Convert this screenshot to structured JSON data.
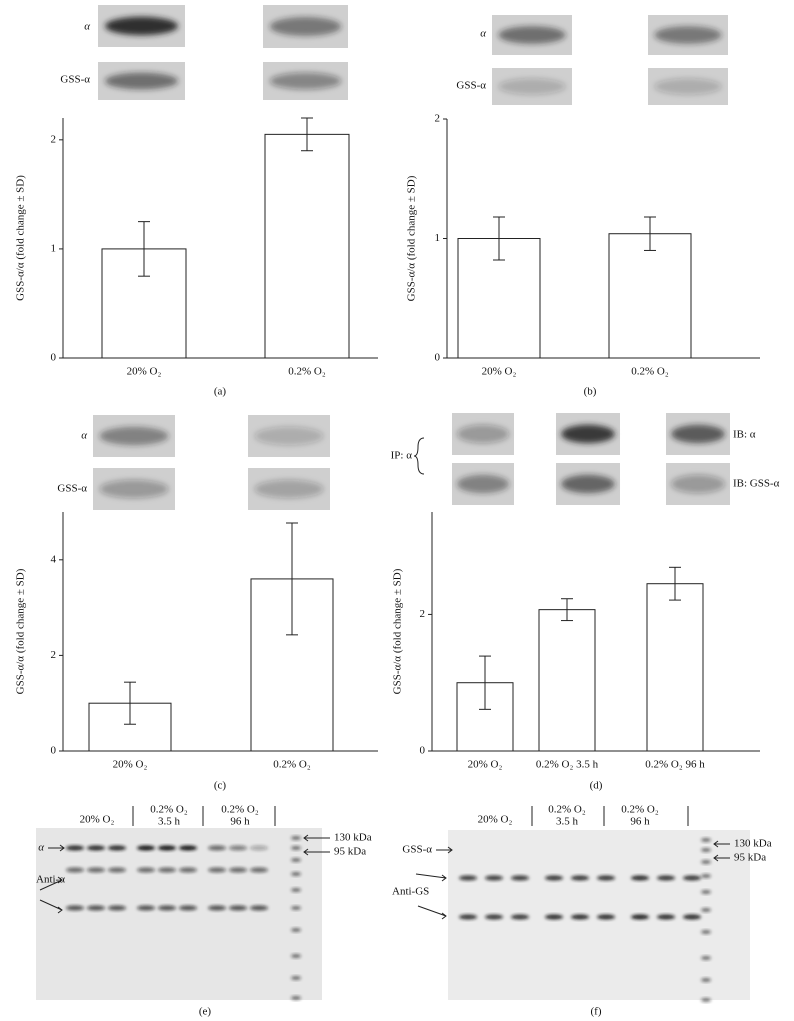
{
  "chart_data": [
    {
      "type": "bar",
      "panel_label": "(a)",
      "y_label": "GSS-α/α (fold change ± SD)",
      "blot_labels": [
        "α",
        "GSS-α"
      ],
      "categories": [
        "20% O₂",
        "0.2% O₂"
      ],
      "values": [
        1.0,
        2.05
      ],
      "errors": [
        0.25,
        0.15
      ],
      "color": "#ffffff",
      "ylim": [
        0,
        2.2
      ],
      "yticks": [
        0,
        1,
        2
      ]
    },
    {
      "type": "bar",
      "panel_label": "(b)",
      "y_label": "GSS-α/α (fold change ± SD)",
      "blot_labels": [
        "α",
        "GSS-α"
      ],
      "categories": [
        "20% O₂",
        "0.2% O₂"
      ],
      "values": [
        1.0,
        1.04
      ],
      "errors": [
        0.18,
        0.14
      ],
      "color": "#ffffff",
      "ylim": [
        0,
        2
      ],
      "yticks": [
        0,
        1,
        2
      ]
    },
    {
      "type": "bar",
      "panel_label": "(c)",
      "y_label": "GSS-α/α (fold change ± SD)",
      "blot_labels": [
        "α",
        "GSS-α"
      ],
      "categories": [
        "20% O₂",
        "0.2% O₂"
      ],
      "values": [
        1.0,
        3.6
      ],
      "errors": [
        0.44,
        1.17
      ],
      "color": "#ffffff",
      "ylim": [
        0,
        5
      ],
      "yticks": [
        0,
        2,
        4
      ]
    },
    {
      "type": "bar",
      "panel_label": "(d)",
      "y_label": "GSS-α/α (fold change ± SD)",
      "ip_label": "IP: α",
      "blot_labels": [
        "IB: α",
        "IB: GSS-α"
      ],
      "categories": [
        "20% O₂",
        "0.2% O₂ 3.5 h",
        "0.2% O₂ 96 h"
      ],
      "values": [
        1.0,
        2.07,
        2.45
      ],
      "errors": [
        0.39,
        0.16,
        0.24
      ],
      "color": "#ffffff",
      "ylim": [
        0,
        3.5
      ],
      "yticks": [
        0,
        2
      ]
    }
  ],
  "blots": [
    {
      "panel_label": "(e)",
      "lanes": [
        [
          "20% O₂"
        ],
        [
          "0.2% O₂",
          "3.5 h"
        ],
        [
          "0.2% O₂",
          "96 h"
        ]
      ],
      "band_labels": [
        "α",
        "Anti-α"
      ],
      "markers": [
        "130 kDa",
        "95 kDa"
      ]
    },
    {
      "panel_label": "(f)",
      "lanes": [
        [
          "20% O₂"
        ],
        [
          "0.2% O₂",
          "3.5 h"
        ],
        [
          "0.2% O₂",
          "96 h"
        ]
      ],
      "band_labels": [
        "GSS-α",
        "Anti-GS"
      ],
      "markers": [
        "130 kDa",
        "95 kDa"
      ]
    }
  ]
}
